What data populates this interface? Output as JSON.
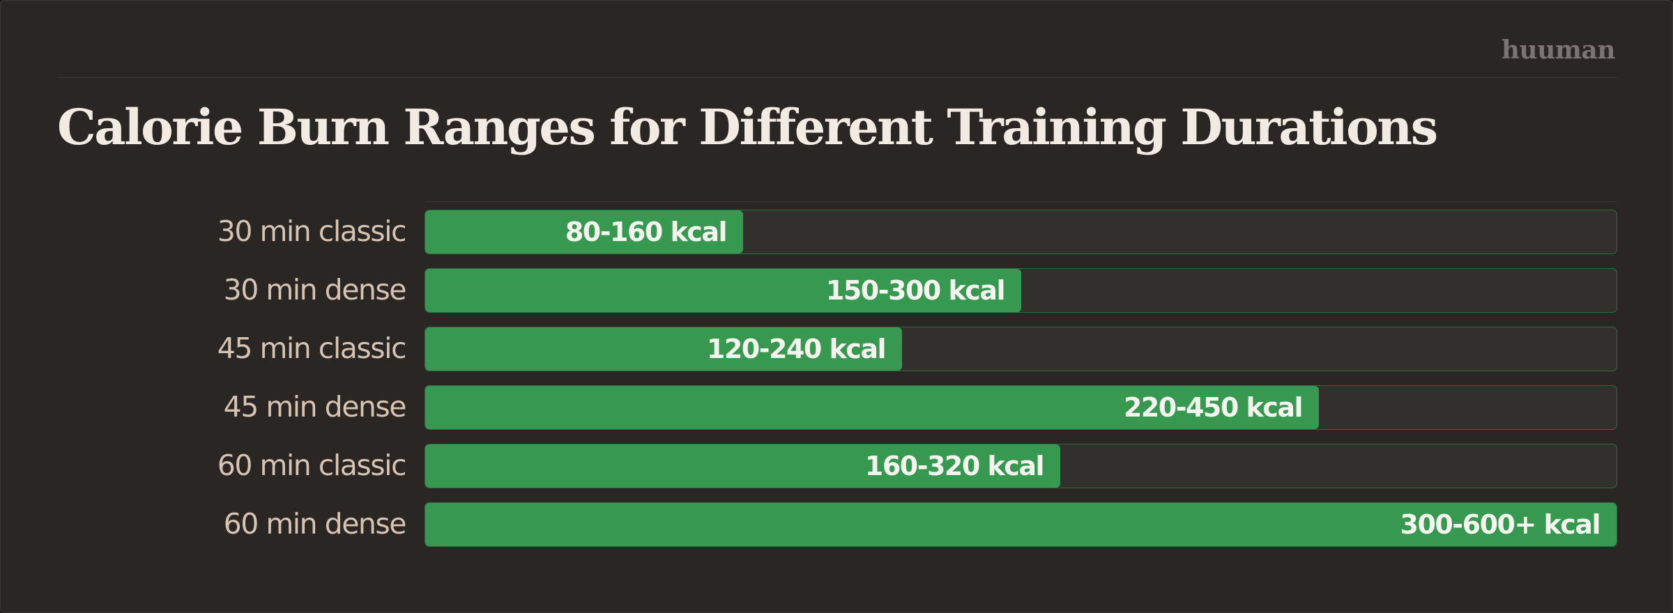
{
  "brand": "huuman",
  "chart_data": {
    "type": "bar",
    "orientation": "horizontal",
    "title": "Calorie Burn Ranges for Different Training Durations",
    "categories": [
      "30 min classic",
      "30 min dense",
      "45 min classic",
      "45 min dense",
      "60 min classic",
      "60 min dense"
    ],
    "value_labels": [
      "80-160 kcal",
      "150-300 kcal",
      "120-240 kcal",
      "220-450 kcal",
      "160-320 kcal",
      "300-600+ kcal"
    ],
    "ranges": [
      [
        80,
        160
      ],
      [
        150,
        300
      ],
      [
        120,
        240
      ],
      [
        220,
        450
      ],
      [
        160,
        320
      ],
      [
        300,
        600
      ]
    ],
    "values": [
      160,
      300,
      240,
      450,
      320,
      600
    ],
    "xlim": [
      0,
      600
    ],
    "unit": "kcal",
    "grid": false,
    "legend": "none",
    "colors": {
      "bar": "#379950",
      "track": "#31302d",
      "track_border": "#2f6a42",
      "label": "#d6c3b2",
      "title": "#f1ebe4"
    }
  }
}
